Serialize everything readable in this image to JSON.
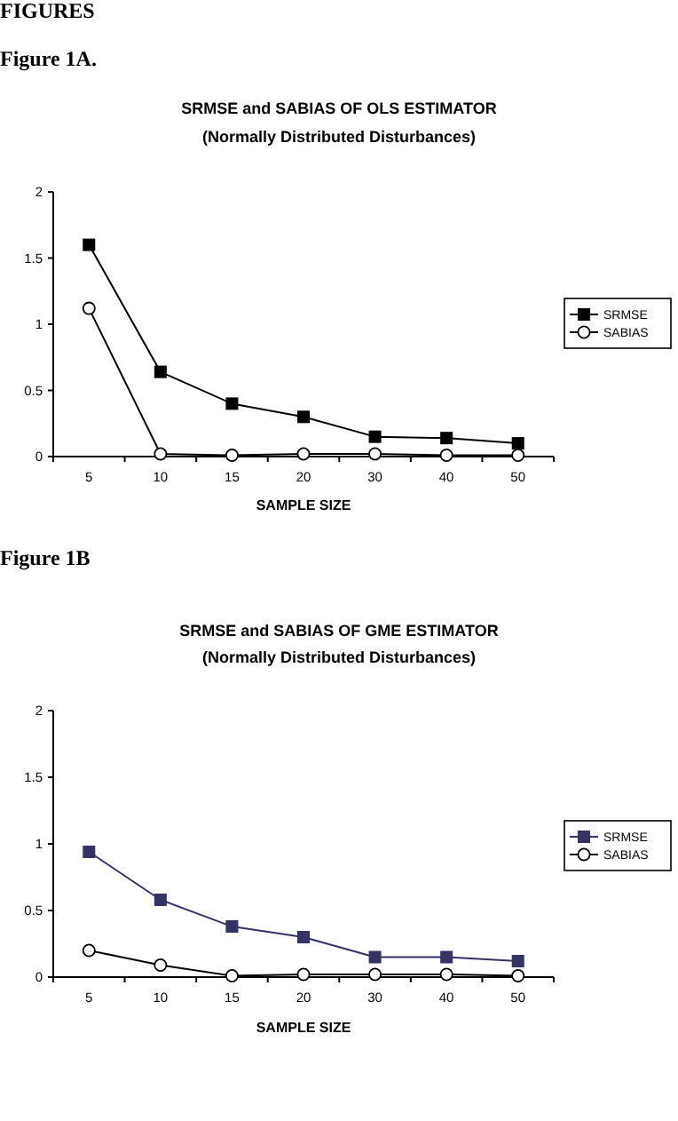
{
  "chart_data": [
    {
      "type": "line",
      "title": "SRMSE and SABIAS OF OLS ESTIMATOR",
      "subtitle": "(Normally Distributed Disturbances)",
      "xlabel": "SAMPLE SIZE",
      "annotations": [
        "FIGURES",
        "Figure 1A."
      ],
      "categories": [
        "5",
        "10",
        "15",
        "20",
        "30",
        "40",
        "50"
      ],
      "ylim": [
        0,
        2
      ],
      "yticks": [
        0,
        0.5,
        1,
        1.5,
        2
      ],
      "grid": false,
      "legend": "right",
      "line_style": "solid",
      "series": [
        {
          "name": "SRMSE",
          "color": "#000000",
          "marker": "square",
          "values": [
            1.6,
            0.64,
            0.4,
            0.3,
            0.15,
            0.14,
            0.1
          ]
        },
        {
          "name": "SABIAS",
          "color": "#000000",
          "marker": "circle",
          "values": [
            1.12,
            0.02,
            0.01,
            0.02,
            0.02,
            0.01,
            0.01
          ]
        }
      ]
    },
    {
      "type": "line",
      "title": "SRMSE and SABIAS OF GME ESTIMATOR",
      "subtitle": "(Normally Distributed Disturbances)",
      "xlabel": "SAMPLE SIZE",
      "annotations": [
        "Figure 1B"
      ],
      "categories": [
        "5",
        "10",
        "15",
        "20",
        "30",
        "40",
        "50"
      ],
      "ylim": [
        0,
        2
      ],
      "yticks": [
        0,
        0.5,
        1,
        1.5,
        2
      ],
      "grid": false,
      "legend": "right",
      "line_style": "solid",
      "series": [
        {
          "name": "SRMSE",
          "color": "#333366",
          "marker": "square",
          "values": [
            0.94,
            0.58,
            0.38,
            0.3,
            0.15,
            0.15,
            0.12
          ]
        },
        {
          "name": "SABIAS",
          "color": "#000000",
          "marker": "circle",
          "values": [
            0.2,
            0.09,
            0.01,
            0.02,
            0.02,
            0.02,
            0.01
          ]
        }
      ]
    }
  ]
}
